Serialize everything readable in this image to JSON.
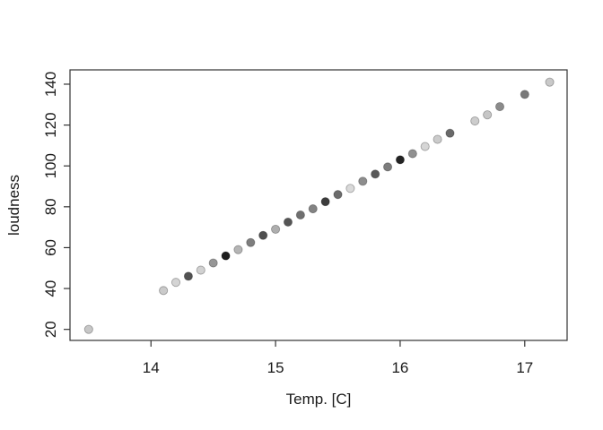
{
  "figure": {
    "background": "#ffffff",
    "axis_color": "#333333",
    "tick_label_color": "#1a1a1a"
  },
  "chart_data": {
    "type": "scatter",
    "title": "",
    "xlabel": "Temp. [C]",
    "ylabel": "loudness",
    "xlim": [
      13.35,
      17.34
    ],
    "ylim": [
      14.6,
      147.0
    ],
    "x_ticks": [
      14,
      15,
      16,
      17
    ],
    "y_ticks": [
      20,
      40,
      60,
      80,
      100,
      120,
      140
    ],
    "grid": false,
    "legend": "none",
    "marker": {
      "shape": "circle",
      "radius_px": 4.6
    },
    "points": [
      {
        "x": 13.5,
        "y": 20,
        "color": "#c7c7c7"
      },
      {
        "x": 14.1,
        "y": 39,
        "color": "#cacaca"
      },
      {
        "x": 14.2,
        "y": 43,
        "color": "#d4d4d4"
      },
      {
        "x": 14.3,
        "y": 46,
        "color": "#525252"
      },
      {
        "x": 14.4,
        "y": 49,
        "color": "#d1d1d1"
      },
      {
        "x": 14.5,
        "y": 52.5,
        "color": "#969696"
      },
      {
        "x": 14.6,
        "y": 56,
        "color": "#1d1d1d"
      },
      {
        "x": 14.7,
        "y": 59,
        "color": "#b5b5b5"
      },
      {
        "x": 14.8,
        "y": 62.5,
        "color": "#7e7e7e"
      },
      {
        "x": 14.9,
        "y": 66,
        "color": "#4f4f4f"
      },
      {
        "x": 15.0,
        "y": 69,
        "color": "#aeaeae"
      },
      {
        "x": 15.1,
        "y": 72.5,
        "color": "#555555"
      },
      {
        "x": 15.2,
        "y": 76,
        "color": "#6f6f6f"
      },
      {
        "x": 15.3,
        "y": 79,
        "color": "#838383"
      },
      {
        "x": 15.4,
        "y": 82.5,
        "color": "#3c3c3c"
      },
      {
        "x": 15.5,
        "y": 86,
        "color": "#6c6c6c"
      },
      {
        "x": 15.6,
        "y": 89,
        "color": "#d9d9d9"
      },
      {
        "x": 15.7,
        "y": 92.5,
        "color": "#8d8d8d"
      },
      {
        "x": 15.8,
        "y": 96,
        "color": "#585858"
      },
      {
        "x": 15.9,
        "y": 99.5,
        "color": "#7d7d7d"
      },
      {
        "x": 16.0,
        "y": 103,
        "color": "#232323"
      },
      {
        "x": 16.1,
        "y": 106,
        "color": "#909090"
      },
      {
        "x": 16.2,
        "y": 109.5,
        "color": "#d6d6d6"
      },
      {
        "x": 16.3,
        "y": 113,
        "color": "#cbcbcb"
      },
      {
        "x": 16.4,
        "y": 116,
        "color": "#696969"
      },
      {
        "x": 16.6,
        "y": 122,
        "color": "#cccccc"
      },
      {
        "x": 16.7,
        "y": 125,
        "color": "#c6c6c6"
      },
      {
        "x": 16.8,
        "y": 129,
        "color": "#8b8b8b"
      },
      {
        "x": 17.0,
        "y": 135,
        "color": "#797979"
      },
      {
        "x": 17.2,
        "y": 141,
        "color": "#c9c9c9"
      }
    ]
  }
}
